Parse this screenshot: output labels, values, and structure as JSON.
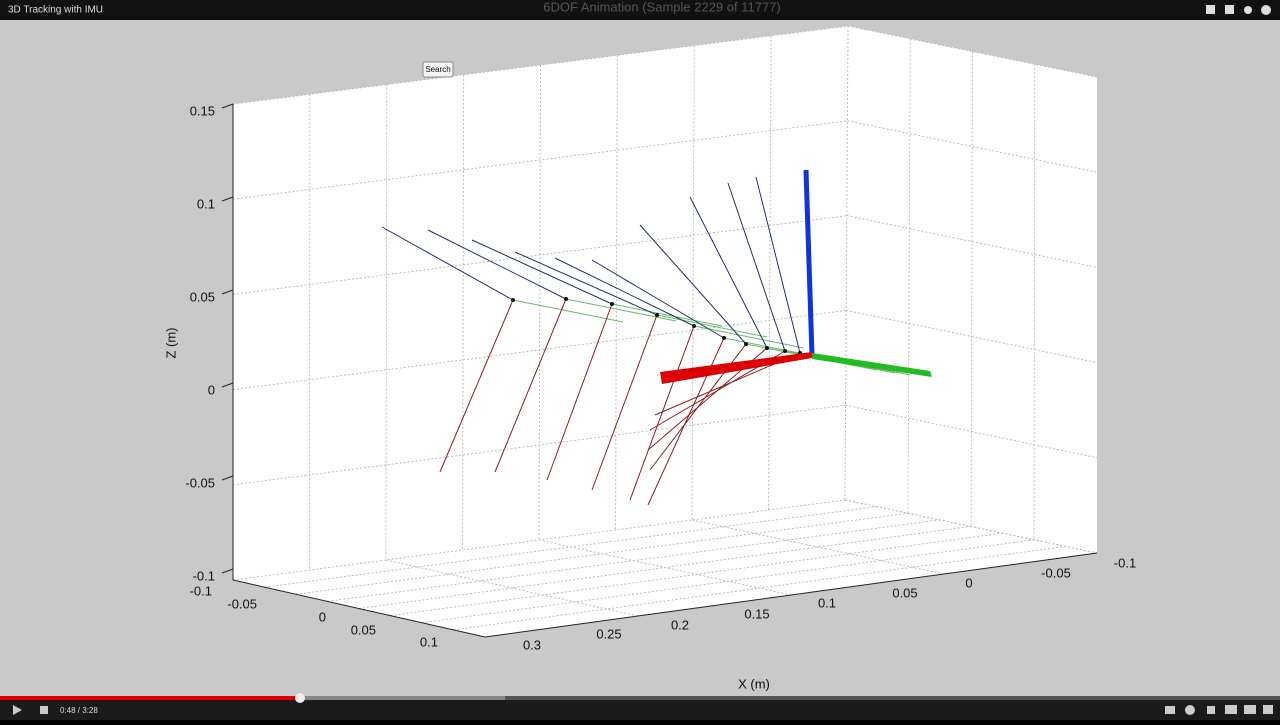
{
  "player": {
    "video_title": "3D Tracking with IMU",
    "time": "0:48 / 3:28"
  },
  "plot": {
    "title": "6DOF Animation (Sample 2229 of 11777)",
    "search_button": "Search",
    "z_label": "Z (m)",
    "x_label": "X (m)",
    "z_ticks": [
      0.15,
      0.1,
      0.05,
      0,
      -0.05,
      -0.1
    ],
    "y_ticks": [
      -0.1,
      -0.05,
      0,
      0.05,
      0.1
    ],
    "x_ticks": [
      0.3,
      0.25,
      0.2,
      0.15,
      0.1,
      0.05,
      0,
      -0.05,
      -0.1
    ]
  }
}
